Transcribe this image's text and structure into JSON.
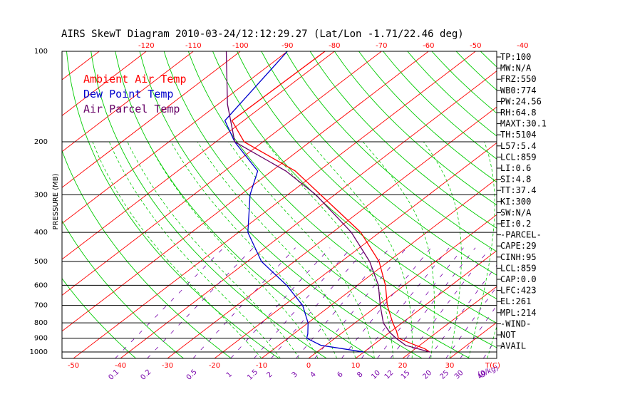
{
  "chart_data": {
    "type": "line",
    "title": "AIRS SkewT Diagram 2010-03-24/12:12:29.27 (Lat/Lon -1.71/22.46 deg)",
    "ylabel": "PRESSURE (MB)",
    "ylim": [
      1050,
      100
    ],
    "y_scale": "log",
    "pressure_ticks": [
      100,
      200,
      300,
      400,
      500,
      600,
      700,
      800,
      900,
      1000
    ],
    "top_temperature_ticks": [
      -120,
      -110,
      -100,
      -90,
      -80,
      -70,
      -60,
      -50,
      -40
    ],
    "bottom_temperature_ticks": [
      -50,
      -40,
      -30,
      -20,
      -10,
      0,
      10,
      20,
      30
    ],
    "bottom_temperature_unit": "T(C)",
    "mixing_ratio_ticks": [
      "0.1",
      "0.2",
      "0.5",
      "1",
      "1.5",
      "2",
      "3",
      "4",
      "6",
      "8",
      "10",
      "12",
      "15",
      "20",
      "25",
      "30",
      "40"
    ],
    "mixing_ratio_unit": "(g/kg)",
    "legend": [
      {
        "name": "Ambient Air Temp",
        "color": "#ff0000"
      },
      {
        "name": "Dew Point Temp",
        "color": "#0000cc"
      },
      {
        "name": "Air Parcel Temp",
        "color": "#660066"
      }
    ],
    "series": [
      {
        "name": "Ambient Air Temp",
        "color": "#ff0000",
        "points": [
          [
            100,
            -82
          ],
          [
            170,
            -82.5
          ],
          [
            200,
            -74
          ],
          [
            250,
            -55
          ],
          [
            300,
            -43
          ],
          [
            400,
            -24
          ],
          [
            500,
            -12
          ],
          [
            600,
            -4
          ],
          [
            700,
            2
          ],
          [
            800,
            8
          ],
          [
            850,
            11
          ],
          [
            900,
            13.5
          ],
          [
            940,
            18
          ],
          [
            975,
            22
          ],
          [
            1000,
            24
          ]
        ]
      },
      {
        "name": "Dew Point Temp",
        "color": "#0000cc",
        "points": [
          [
            100,
            -90
          ],
          [
            170,
            -84
          ],
          [
            200,
            -76
          ],
          [
            250,
            -63
          ],
          [
            300,
            -58
          ],
          [
            400,
            -48
          ],
          [
            500,
            -37
          ],
          [
            600,
            -25
          ],
          [
            700,
            -16
          ],
          [
            800,
            -10
          ],
          [
            870,
            -7
          ],
          [
            900,
            -6
          ],
          [
            950,
            -1
          ],
          [
            1000,
            10
          ]
        ]
      },
      {
        "name": "Air Parcel Temp",
        "color": "#660066",
        "points": [
          [
            100,
            -103
          ],
          [
            150,
            -88
          ],
          [
            200,
            -76
          ],
          [
            250,
            -57
          ],
          [
            300,
            -44
          ],
          [
            400,
            -26
          ],
          [
            500,
            -14
          ],
          [
            600,
            -5.5
          ],
          [
            700,
            0.5
          ],
          [
            800,
            6
          ],
          [
            860,
            10
          ],
          [
            900,
            13
          ],
          [
            950,
            17
          ],
          [
            1000,
            24
          ]
        ]
      }
    ]
  },
  "indices": [
    "TP:100",
    "MW:N/A",
    "FRZ:550",
    "WB0:774",
    "PW:24.56",
    "RH:64.8",
    "MAXT:30.1",
    "TH:5104",
    "L57:5.4",
    "LCL:859",
    "LI:0.6",
    "SI:4.8",
    "TT:37.4",
    "KI:300",
    "SW:N/A",
    "EI:0.2",
    "-PARCEL-",
    "CAPE:29",
    "CINH:95",
    "LCL:859",
    "CAP:0.0",
    "LFC:423",
    "EL:261",
    "MPL:214",
    "-WIND-",
    "NOT",
    "AVAIL"
  ],
  "colors": {
    "isotherm": "#ff0000",
    "dry_adiabat": "#00cc00",
    "moist_adiabat": "#00cc00",
    "mixing_ratio": "#7700aa",
    "isobar": "#000000",
    "tick_top": "#ff0000",
    "tick_bottom": "#ff0000",
    "tick_mixing": "#7700aa"
  }
}
